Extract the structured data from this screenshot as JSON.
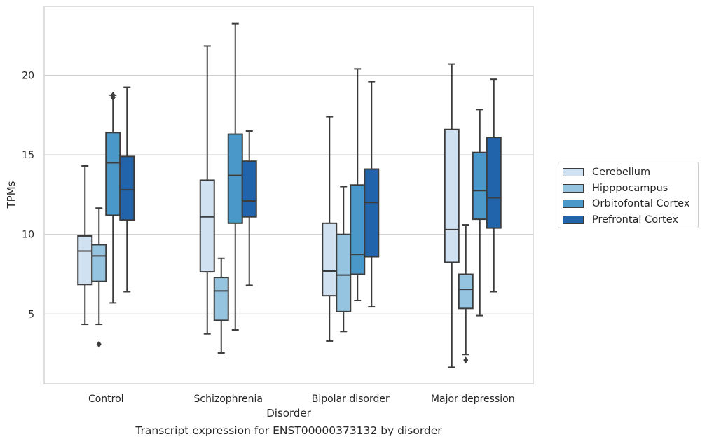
{
  "chart_data": {
    "type": "box",
    "xlabel": "Disorder",
    "ylabel": "TPMs",
    "caption": "Transcript expression for ENST00000373132 by disorder",
    "categories": [
      "Control",
      "Schizophrenia",
      "Bipolar disorder",
      "Major depression"
    ],
    "yticks": [
      5,
      10,
      15,
      20
    ],
    "ylim": [
      0.7,
      24.4
    ],
    "grid": true,
    "legend_position": "right",
    "series": [
      {
        "name": "Cerebellum",
        "color": "#d0e1f2",
        "boxes": [
          {
            "whislo": 4.35,
            "q1": 6.85,
            "med": 8.95,
            "q3": 9.9,
            "whishi": 14.3,
            "fliers": []
          },
          {
            "whislo": 3.75,
            "q1": 7.65,
            "med": 11.1,
            "q3": 13.4,
            "whishi": 21.85,
            "fliers": []
          },
          {
            "whislo": 3.3,
            "q1": 6.15,
            "med": 7.7,
            "q3": 10.7,
            "whishi": 17.4,
            "fliers": []
          },
          {
            "whislo": 1.65,
            "q1": 8.25,
            "med": 10.3,
            "q3": 16.6,
            "whishi": 20.7,
            "fliers": []
          }
        ]
      },
      {
        "name": "Hipppocampus",
        "color": "#94c4df",
        "boxes": [
          {
            "whislo": 4.35,
            "q1": 7.05,
            "med": 8.65,
            "q3": 9.35,
            "whishi": 11.65,
            "fliers": [
              3.1
            ]
          },
          {
            "whislo": 2.55,
            "q1": 4.6,
            "med": 6.45,
            "q3": 7.3,
            "whishi": 8.5,
            "fliers": []
          },
          {
            "whislo": 3.9,
            "q1": 5.15,
            "med": 7.45,
            "q3": 10.0,
            "whishi": 13.0,
            "fliers": []
          },
          {
            "whislo": 2.45,
            "q1": 5.35,
            "med": 6.55,
            "q3": 7.5,
            "whishi": 10.6,
            "fliers": [
              2.1
            ]
          }
        ]
      },
      {
        "name": "Orbitofontal Cortex",
        "color": "#4a98c9",
        "boxes": [
          {
            "whislo": 5.7,
            "q1": 11.2,
            "med": 14.5,
            "q3": 16.4,
            "whishi": 18.75,
            "fliers": [
              18.6,
              18.75
            ]
          },
          {
            "whislo": 4.0,
            "q1": 10.7,
            "med": 13.7,
            "q3": 16.3,
            "whishi": 23.25,
            "fliers": []
          },
          {
            "whislo": 5.85,
            "q1": 7.5,
            "med": 8.75,
            "q3": 13.1,
            "whishi": 20.4,
            "fliers": []
          },
          {
            "whislo": 4.9,
            "q1": 10.95,
            "med": 12.75,
            "q3": 15.15,
            "whishi": 17.85,
            "fliers": []
          }
        ]
      },
      {
        "name": "Prefrontal Cortex",
        "color": "#2164ab",
        "boxes": [
          {
            "whislo": 6.4,
            "q1": 10.9,
            "med": 12.8,
            "q3": 14.9,
            "whishi": 19.25,
            "fliers": []
          },
          {
            "whislo": 6.8,
            "q1": 11.1,
            "med": 12.1,
            "q3": 14.6,
            "whishi": 16.5,
            "fliers": []
          },
          {
            "whislo": 5.45,
            "q1": 8.6,
            "med": 12.0,
            "q3": 14.1,
            "whishi": 19.6,
            "fliers": []
          },
          {
            "whislo": 6.4,
            "q1": 10.4,
            "med": 12.3,
            "q3": 16.1,
            "whishi": 19.75,
            "fliers": []
          }
        ]
      }
    ]
  }
}
